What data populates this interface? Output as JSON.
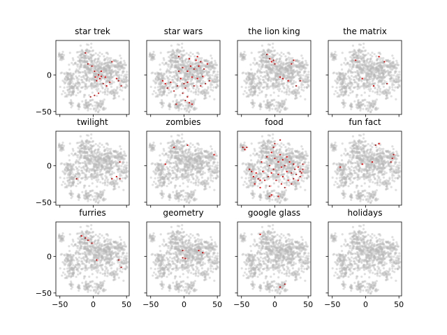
{
  "chart_data": [
    {
      "type": "scatter",
      "title": "star trek",
      "highlight": [
        [
          -12,
          30
        ],
        [
          -8,
          15
        ],
        [
          -2,
          12
        ],
        [
          2,
          5
        ],
        [
          3,
          -3
        ],
        [
          5,
          -8
        ],
        [
          8,
          0
        ],
        [
          10,
          -5
        ],
        [
          12,
          -2
        ],
        [
          12,
          5
        ],
        [
          15,
          -12
        ],
        [
          18,
          -3
        ],
        [
          20,
          -15
        ],
        [
          25,
          -10
        ],
        [
          28,
          18
        ],
        [
          35,
          -5
        ],
        [
          38,
          -8
        ],
        [
          42,
          -15
        ],
        [
          8,
          -25
        ],
        [
          2,
          -28
        ],
        [
          -4,
          -30
        ]
      ]
    },
    {
      "type": "scatter",
      "title": "star wars",
      "highlight": [
        [
          -32,
          -8
        ],
        [
          -28,
          -12
        ],
        [
          -25,
          -18
        ],
        [
          -20,
          -10
        ],
        [
          -15,
          -22
        ],
        [
          -10,
          -15
        ],
        [
          -8,
          5
        ],
        [
          -5,
          -5
        ],
        [
          -2,
          10
        ],
        [
          0,
          -12
        ],
        [
          2,
          -18
        ],
        [
          5,
          5
        ],
        [
          5,
          -10
        ],
        [
          8,
          22
        ],
        [
          10,
          12
        ],
        [
          12,
          -3
        ],
        [
          15,
          8
        ],
        [
          15,
          -15
        ],
        [
          18,
          20
        ],
        [
          20,
          -5
        ],
        [
          22,
          12
        ],
        [
          25,
          -15
        ],
        [
          28,
          -2
        ],
        [
          30,
          8
        ],
        [
          32,
          -12
        ],
        [
          35,
          15
        ],
        [
          38,
          -8
        ],
        [
          8,
          -38
        ],
        [
          2,
          -35
        ],
        [
          -12,
          -40
        ],
        [
          12,
          -40
        ],
        [
          -8,
          25
        ],
        [
          20,
          25
        ],
        [
          25,
          18
        ],
        [
          -2,
          -25
        ],
        [
          5,
          -30
        ]
      ]
    },
    {
      "type": "scatter",
      "title": "the lion king",
      "highlight": [
        [
          -12,
          28
        ],
        [
          -8,
          22
        ],
        [
          -5,
          18
        ],
        [
          -2,
          20
        ],
        [
          0,
          15
        ],
        [
          8,
          -3
        ],
        [
          12,
          -5
        ],
        [
          20,
          -8
        ],
        [
          25,
          15
        ],
        [
          28,
          20
        ],
        [
          32,
          -15
        ],
        [
          38,
          -8
        ]
      ]
    },
    {
      "type": "scatter",
      "title": "the matrix",
      "highlight": [
        [
          -15,
          20
        ],
        [
          -5,
          -5
        ],
        [
          12,
          -15
        ],
        [
          20,
          25
        ],
        [
          28,
          18
        ],
        [
          32,
          -12
        ]
      ]
    },
    {
      "type": "scatter",
      "title": "twilight",
      "highlight": [
        [
          -25,
          -18
        ],
        [
          28,
          -18
        ],
        [
          35,
          -15
        ],
        [
          40,
          -18
        ],
        [
          40,
          5
        ]
      ]
    },
    {
      "type": "scatter",
      "title": "zombies",
      "highlight": [
        [
          -28,
          2
        ],
        [
          -15,
          25
        ],
        [
          5,
          28
        ],
        [
          45,
          15
        ]
      ]
    },
    {
      "type": "scatter",
      "title": "food",
      "highlight": [
        [
          -48,
          25
        ],
        [
          -45,
          22
        ],
        [
          -42,
          25
        ],
        [
          -38,
          -5
        ],
        [
          -35,
          -8
        ],
        [
          -32,
          -15
        ],
        [
          -30,
          -25
        ],
        [
          -28,
          -10
        ],
        [
          -25,
          -18
        ],
        [
          -22,
          -20
        ],
        [
          -22,
          -30
        ],
        [
          -20,
          5
        ],
        [
          -18,
          -8
        ],
        [
          -15,
          -20
        ],
        [
          -12,
          12
        ],
        [
          -10,
          -15
        ],
        [
          -8,
          0
        ],
        [
          -8,
          -28
        ],
        [
          -5,
          -10
        ],
        [
          -5,
          18
        ],
        [
          -2,
          25
        ],
        [
          -2,
          -5
        ],
        [
          0,
          30
        ],
        [
          0,
          10
        ],
        [
          2,
          -20
        ],
        [
          5,
          5
        ],
        [
          5,
          -12
        ],
        [
          8,
          35
        ],
        [
          8,
          15
        ],
        [
          10,
          -2
        ],
        [
          10,
          -25
        ],
        [
          12,
          8
        ],
        [
          12,
          -15
        ],
        [
          15,
          0
        ],
        [
          15,
          -30
        ],
        [
          18,
          12
        ],
        [
          18,
          -8
        ],
        [
          20,
          -20
        ],
        [
          22,
          5
        ],
        [
          25,
          -10
        ],
        [
          25,
          -25
        ],
        [
          28,
          2
        ],
        [
          28,
          -18
        ],
        [
          30,
          -5
        ],
        [
          32,
          -12
        ],
        [
          35,
          -2
        ],
        [
          35,
          -20
        ],
        [
          38,
          -8
        ],
        [
          38,
          -15
        ],
        [
          40,
          -10
        ],
        [
          42,
          2
        ],
        [
          42,
          -5
        ],
        [
          -5,
          -40
        ],
        [
          -8,
          -42
        ],
        [
          5,
          -42
        ]
      ]
    },
    {
      "type": "scatter",
      "title": "fun fact",
      "highlight": [
        [
          -38,
          -2
        ],
        [
          -5,
          2
        ],
        [
          10,
          5
        ],
        [
          15,
          28
        ],
        [
          20,
          30
        ],
        [
          42,
          15
        ],
        [
          40,
          10
        ],
        [
          38,
          5
        ]
      ]
    },
    {
      "type": "scatter",
      "title": "furries",
      "highlight": [
        [
          -18,
          28
        ],
        [
          -12,
          25
        ],
        [
          -8,
          22
        ],
        [
          -2,
          18
        ],
        [
          5,
          -5
        ],
        [
          38,
          -5
        ],
        [
          42,
          -15
        ]
      ]
    },
    {
      "type": "scatter",
      "title": "geometry",
      "highlight": [
        [
          -2,
          8
        ],
        [
          -2,
          -2
        ],
        [
          2,
          -3
        ],
        [
          22,
          8
        ],
        [
          28,
          5
        ]
      ]
    },
    {
      "type": "scatter",
      "title": "google glass",
      "highlight": [
        [
          -22,
          30
        ],
        [
          8,
          -42
        ],
        [
          15,
          -38
        ]
      ]
    },
    {
      "type": "scatter",
      "title": "holidays",
      "highlight": []
    }
  ],
  "axes": {
    "xlim": [
      -56,
      54
    ],
    "ylim": [
      -54,
      47
    ],
    "xticks": [
      -50,
      0,
      50
    ],
    "yticks": [
      -50,
      0
    ],
    "xtick_labels": [
      "−50",
      "0",
      "50"
    ],
    "ytick_labels": [
      "−50",
      "0"
    ],
    "background_color": "#b9b9b9",
    "highlight_color": "#e00000"
  }
}
